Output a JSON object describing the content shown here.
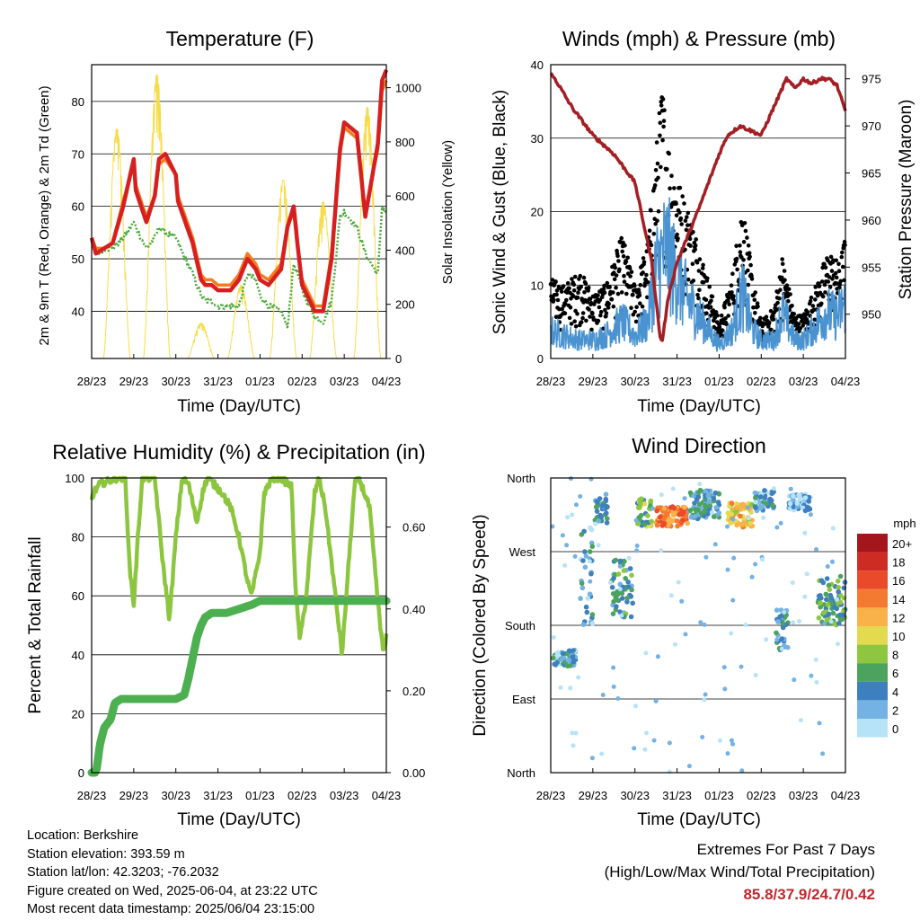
{
  "info": {
    "location": "Location: Berkshire",
    "elevation": "Station elevation: 393.59 m",
    "latlon": "Station lat/lon: 42.3203; -76.2032",
    "created": "Figure created on Wed, 2025-06-04, at 23:22 UTC",
    "recent": "Most recent data timestamp: 2025/06/04 23:15:00"
  },
  "extremes": {
    "heading": "Extremes For Past 7 Days",
    "subheading": "(High/Low/Max Wind/Total Precipitation)",
    "values": "85.8/37.9/24.7/0.42"
  },
  "time_ticks": [
    "28/23",
    "29/23",
    "30/23",
    "31/23",
    "01/23",
    "02/23",
    "03/23",
    "04/23"
  ],
  "chart_data": [
    {
      "id": "temperature",
      "type": "line",
      "title": "Temperature (F)",
      "xlabel": "Time (Day/UTC)",
      "ylabel": "2m & 9m T (Red, Orange) & 2m Td (Green)",
      "y2label": "Solar Insolation (Yellow)",
      "ylim": [
        31,
        87
      ],
      "y_ticks": [
        40,
        50,
        60,
        70,
        80
      ],
      "y2lim": [
        0,
        1085
      ],
      "y2_ticks": [
        0,
        200,
        400,
        600,
        800,
        1000
      ],
      "x": [
        0,
        0.1,
        0.3,
        0.5,
        0.75,
        1,
        1.05,
        1.3,
        1.5,
        1.6,
        1.75,
        2,
        2.05,
        2.4,
        2.6,
        2.7,
        2.85,
        3,
        3.3,
        3.5,
        3.7,
        3.9,
        4.0,
        4.2,
        4.5,
        4.65,
        4.8,
        4.9,
        5.0,
        5.3,
        5.5,
        5.7,
        5.9,
        6.0,
        6.3,
        6.5,
        6.8,
        6.9,
        7.0
      ],
      "series": [
        {
          "name": "2m T",
          "color": "#d62020",
          "values": [
            54,
            51,
            52,
            53,
            60,
            69,
            63,
            57,
            62,
            69,
            70,
            66,
            61,
            53,
            46,
            45,
            45,
            44,
            44,
            46,
            50,
            48,
            46,
            45,
            48,
            56,
            60,
            52,
            45,
            40,
            40,
            50,
            71,
            76,
            74,
            58,
            72,
            84,
            86
          ]
        },
        {
          "name": "9m T",
          "color": "#f47b20",
          "values": [
            54,
            52,
            52,
            53,
            61,
            68,
            64,
            58,
            62,
            68,
            69,
            66,
            62,
            54,
            47,
            46,
            46,
            45,
            45,
            47,
            51,
            49,
            47,
            46,
            49,
            56,
            59,
            52,
            46,
            41,
            41,
            51,
            70,
            75,
            73,
            59,
            71,
            82,
            84
          ]
        },
        {
          "name": "2m Td",
          "color": "#4aa93a",
          "values": [
            53,
            51,
            52,
            52,
            54,
            57,
            56,
            52,
            54,
            56,
            55,
            54,
            53,
            47,
            43,
            42,
            42,
            41,
            41,
            41,
            47,
            46,
            43,
            41,
            40,
            37,
            49,
            47,
            44,
            39,
            38,
            42,
            58,
            59,
            56,
            51,
            47,
            60,
            59
          ]
        }
      ],
      "insolation": {
        "name": "Solar Insolation",
        "color": "#f7dc4a",
        "peaks": [
          [
            0.6,
            850
          ],
          [
            1.55,
            1050
          ],
          [
            2.6,
            130
          ],
          [
            3.55,
            270
          ],
          [
            4.55,
            660
          ],
          [
            5.5,
            580
          ],
          [
            6.55,
            930
          ]
        ]
      }
    },
    {
      "id": "winds",
      "type": "line",
      "title": "Winds (mph) & Pressure (mb)",
      "xlabel": "Time (Day/UTC)",
      "ylabel": "Sonic Wind & Gust (Blue, Black)",
      "y2label": "Station Pressure (Maroon)",
      "ylim": [
        0,
        40
      ],
      "y_ticks": [
        0,
        10,
        20,
        30,
        40
      ],
      "y2lim": [
        945.3,
        976.5
      ],
      "y2_ticks": [
        950,
        955,
        960,
        965,
        970,
        975
      ],
      "wind_envelope": [
        [
          0,
          6
        ],
        [
          0.3,
          5
        ],
        [
          0.7,
          4
        ],
        [
          1.0,
          4
        ],
        [
          1.3,
          5
        ],
        [
          1.7,
          8
        ],
        [
          2.0,
          5
        ],
        [
          2.3,
          8
        ],
        [
          2.5,
          19
        ],
        [
          2.75,
          24
        ],
        [
          3.0,
          17
        ],
        [
          3.3,
          12
        ],
        [
          3.6,
          8
        ],
        [
          4.0,
          3
        ],
        [
          4.3,
          6
        ],
        [
          4.55,
          14
        ],
        [
          4.8,
          6
        ],
        [
          5.0,
          4
        ],
        [
          5.3,
          4
        ],
        [
          5.5,
          10
        ],
        [
          5.8,
          4
        ],
        [
          6.0,
          4
        ],
        [
          6.3,
          7
        ],
        [
          6.55,
          10
        ],
        [
          6.8,
          9
        ],
        [
          7.0,
          12
        ]
      ],
      "gust_envelope": [
        [
          0,
          11
        ],
        [
          0.3,
          10
        ],
        [
          0.7,
          12
        ],
        [
          1.0,
          9
        ],
        [
          1.3,
          10
        ],
        [
          1.7,
          17
        ],
        [
          2.0,
          10
        ],
        [
          2.3,
          16
        ],
        [
          2.55,
          32
        ],
        [
          2.65,
          38
        ],
        [
          2.8,
          30
        ],
        [
          3.0,
          25
        ],
        [
          3.3,
          20
        ],
        [
          3.6,
          14
        ],
        [
          4.0,
          5
        ],
        [
          4.3,
          11
        ],
        [
          4.55,
          22
        ],
        [
          4.8,
          11
        ],
        [
          5.0,
          5
        ],
        [
          5.3,
          7
        ],
        [
          5.5,
          14
        ],
        [
          5.8,
          6
        ],
        [
          6.0,
          6
        ],
        [
          6.3,
          10
        ],
        [
          6.6,
          15
        ],
        [
          6.85,
          13
        ],
        [
          7.0,
          17
        ]
      ],
      "pressure": {
        "name": "Station Pressure",
        "color": "#a31f24",
        "x": [
          0,
          0.1,
          0.5,
          1.0,
          1.5,
          2.0,
          2.4,
          2.6,
          2.65,
          2.8,
          3.0,
          3.5,
          4.0,
          4.2,
          4.5,
          4.9,
          5.0,
          5.3,
          5.6,
          5.8,
          6.0,
          6.2,
          6.4,
          6.6,
          6.8,
          7.0
        ],
        "values": [
          975.5,
          975,
          972,
          969,
          967,
          964,
          955.5,
          947.5,
          947.2,
          952,
          955.5,
          961,
          967,
          969,
          970,
          969.2,
          969,
          972,
          975,
          974,
          975,
          974.5,
          975,
          975,
          974.3,
          971.5
        ]
      }
    },
    {
      "id": "humidity",
      "type": "line",
      "title": "Relative Humidity (%) & Precipitation (in)",
      "xlabel": "Time (Day/UTC)",
      "ylabel": "Percent & Total Rainfall",
      "ylim": [
        0,
        100
      ],
      "y_ticks": [
        0,
        20,
        40,
        60,
        80,
        100
      ],
      "y2lim": [
        0,
        0.72
      ],
      "y2_ticks": [
        "0.00",
        "0.20",
        "0.40",
        "0.60"
      ],
      "series": [
        {
          "name": "Relative Humidity",
          "color": "#8cc63f",
          "x": [
            0,
            0.05,
            0.2,
            0.6,
            0.8,
            0.9,
            1.0,
            1.1,
            1.2,
            1.5,
            1.7,
            1.85,
            2.0,
            2.15,
            2.3,
            2.5,
            2.65,
            2.75,
            2.9,
            3.1,
            3.3,
            3.5,
            3.7,
            3.8,
            4.0,
            4.1,
            4.3,
            4.5,
            4.75,
            4.85,
            4.95,
            5.1,
            5.3,
            5.4,
            5.55,
            5.75,
            5.95,
            6.1,
            6.25,
            6.35,
            6.6,
            6.85,
            6.95,
            7.0
          ],
          "values": [
            93,
            95,
            98,
            100,
            100,
            70,
            57,
            80,
            100,
            100,
            70,
            52,
            80,
            100,
            98,
            85,
            96,
            100,
            98,
            95,
            90,
            80,
            65,
            60,
            75,
            95,
            100,
            100,
            97,
            60,
            45,
            60,
            95,
            100,
            90,
            65,
            40,
            70,
            98,
            100,
            90,
            50,
            40,
            47
          ]
        },
        {
          "name": "Total Precipitation",
          "color": "#4caf50",
          "x": [
            0,
            0.08,
            0.12,
            0.2,
            0.3,
            0.45,
            0.55,
            0.7,
            1.0,
            1.5,
            2.0,
            2.2,
            2.3,
            2.4,
            2.5,
            2.6,
            2.7,
            2.85,
            3.0,
            3.2,
            3.5,
            3.8,
            4.0,
            5.0,
            6.0,
            7.0
          ],
          "values": [
            0,
            0,
            0.01,
            0.07,
            0.11,
            0.13,
            0.17,
            0.18,
            0.18,
            0.18,
            0.18,
            0.19,
            0.23,
            0.28,
            0.33,
            0.36,
            0.38,
            0.39,
            0.39,
            0.39,
            0.4,
            0.41,
            0.42,
            0.42,
            0.42,
            0.42
          ]
        }
      ]
    },
    {
      "id": "direction",
      "type": "scatter",
      "title": "Wind Direction",
      "xlabel": "Time (Day/UTC)",
      "ylabel": "Direction (Colored By Speed)",
      "y_ticks": [
        "North",
        "East",
        "South",
        "West",
        "North"
      ],
      "ylim": [
        0,
        360
      ],
      "colorbar": {
        "title": "mph",
        "labels": [
          "20+",
          "18",
          "16",
          "14",
          "12",
          "10",
          "8",
          "6",
          "4",
          "2",
          "0"
        ],
        "colors": [
          "#a3171c",
          "#cf2b25",
          "#e84a2a",
          "#f47a32",
          "#f9b14a",
          "#e4da4f",
          "#8ec640",
          "#4ba35e",
          "#3e7fbf",
          "#73b2e3",
          "#b6e3f7"
        ]
      },
      "clusters": [
        {
          "x": [
            0.05,
            0.6
          ],
          "dir": [
            130,
            150
          ],
          "speed": 3
        },
        {
          "x": [
            0.7,
            1.0
          ],
          "dir": [
            180,
            300
          ],
          "speed": 3
        },
        {
          "x": [
            1.05,
            1.35
          ],
          "dir": [
            305,
            340
          ],
          "speed": 4
        },
        {
          "x": [
            1.45,
            1.95
          ],
          "dir": [
            190,
            260
          ],
          "speed": 5
        },
        {
          "x": [
            2.05,
            2.4
          ],
          "dir": [
            300,
            335
          ],
          "speed": 7
        },
        {
          "x": [
            2.5,
            3.25
          ],
          "dir": [
            300,
            325
          ],
          "speed": 14
        },
        {
          "x": [
            3.3,
            4.0
          ],
          "dir": [
            310,
            345
          ],
          "speed": 4
        },
        {
          "x": [
            4.2,
            4.8
          ],
          "dir": [
            300,
            330
          ],
          "speed": 11
        },
        {
          "x": [
            4.85,
            5.3
          ],
          "dir": [
            320,
            345
          ],
          "speed": 3
        },
        {
          "x": [
            5.35,
            5.65
          ],
          "dir": [
            150,
            200
          ],
          "speed": 4
        },
        {
          "x": [
            5.65,
            6.2
          ],
          "dir": [
            320,
            340
          ],
          "speed": 2
        },
        {
          "x": [
            6.35,
            7.0
          ],
          "dir": [
            180,
            240
          ],
          "speed": 6
        }
      ]
    }
  ]
}
